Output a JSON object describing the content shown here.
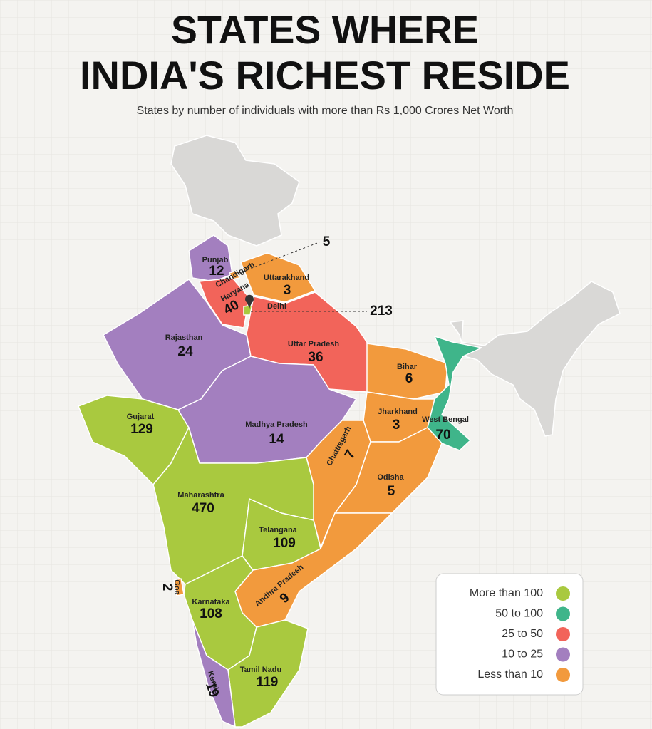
{
  "header": {
    "title_lines": [
      "STATES WHERE",
      "INDIA'S RICHEST RESIDE"
    ],
    "subtitle": "States by number of individuals with more than Rs 1,000 Crores Net Worth"
  },
  "states": [
    {
      "name": "Punjab",
      "value": 12,
      "color": "#a37fbf"
    },
    {
      "name": "Chandigarh",
      "value": 5,
      "color": "#f29a3d"
    },
    {
      "name": "Haryana",
      "value": 40,
      "color": "#f2645a"
    },
    {
      "name": "Uttarakhand",
      "value": 3,
      "color": "#f29a3d"
    },
    {
      "name": "Delhi",
      "value": 213,
      "color": "#a9c93f"
    },
    {
      "name": "Rajasthan",
      "value": 24,
      "color": "#a37fbf"
    },
    {
      "name": "Uttar Pradesh",
      "value": 36,
      "color": "#f2645a"
    },
    {
      "name": "Bihar",
      "value": 6,
      "color": "#f29a3d"
    },
    {
      "name": "Gujarat",
      "value": 129,
      "color": "#a9c93f"
    },
    {
      "name": "Madhya Pradesh",
      "value": 14,
      "color": "#a37fbf"
    },
    {
      "name": "Jharkhand",
      "value": 3,
      "color": "#f29a3d"
    },
    {
      "name": "West Bengal",
      "value": 70,
      "color": "#3fb58a"
    },
    {
      "name": "Chattisgarh",
      "value": 7,
      "color": "#f29a3d"
    },
    {
      "name": "Odisha",
      "value": 5,
      "color": "#f29a3d"
    },
    {
      "name": "Maharashtra",
      "value": 470,
      "color": "#a9c93f"
    },
    {
      "name": "Telangana",
      "value": 109,
      "color": "#a9c93f"
    },
    {
      "name": "Goa",
      "value": 2,
      "color": "#f29a3d"
    },
    {
      "name": "Andhra Pradesh",
      "value": 9,
      "color": "#f29a3d"
    },
    {
      "name": "Karnataka",
      "value": 108,
      "color": "#a9c93f"
    },
    {
      "name": "Tamil Nadu",
      "value": 119,
      "color": "#a9c93f"
    },
    {
      "name": "Kerala",
      "value": 19,
      "color": "#a37fbf"
    }
  ],
  "legend": [
    {
      "label": "More than 100",
      "color": "#a9c93f"
    },
    {
      "label": "50 to 100",
      "color": "#3fb58a"
    },
    {
      "label": "25 to 50",
      "color": "#f2645a"
    },
    {
      "label": "10 to 25",
      "color": "#a37fbf"
    },
    {
      "label": "Less than 10",
      "color": "#f29a3d"
    }
  ]
}
